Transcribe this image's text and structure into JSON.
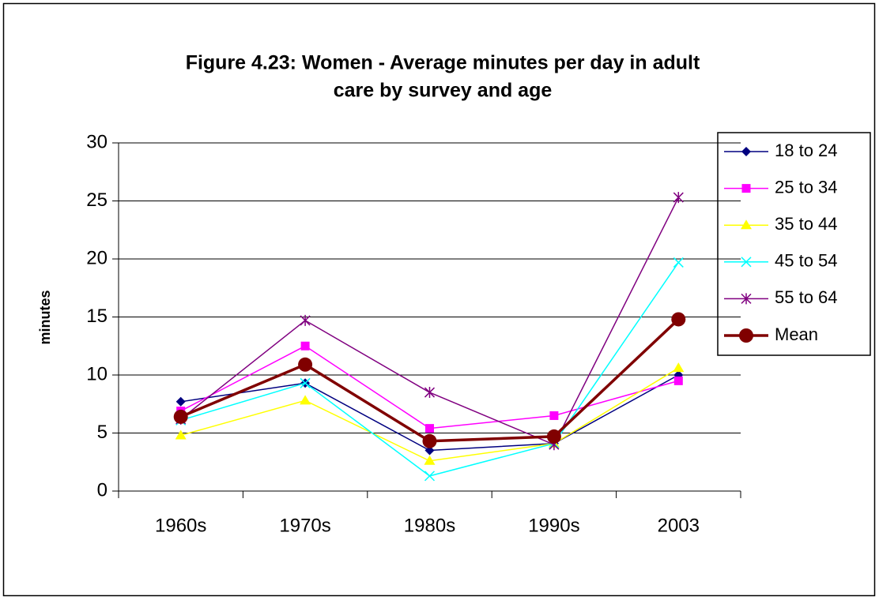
{
  "chart_data": {
    "type": "line",
    "title": [
      "Figure 4.23: Women - Average minutes per day in adult",
      "care  by survey and age"
    ],
    "y_label": "minutes",
    "categories": [
      "1960s",
      "1970s",
      "1980s",
      "1990s",
      "2003"
    ],
    "series": [
      {
        "name": "18 to 24",
        "color": "#000080",
        "marker": "diamond",
        "width": 1.5,
        "values": [
          7.7,
          9.3,
          3.5,
          4.1,
          10.0
        ]
      },
      {
        "name": "25 to 34",
        "color": "#ff00ff",
        "marker": "square",
        "width": 1.5,
        "values": [
          6.9,
          12.5,
          5.4,
          6.5,
          9.5
        ]
      },
      {
        "name": "35 to 44",
        "color": "#ffff00",
        "marker": "triangle",
        "width": 1.5,
        "values": [
          4.8,
          7.8,
          2.6,
          4.1,
          10.6
        ]
      },
      {
        "name": "45 to 54",
        "color": "#00ffff",
        "marker": "x",
        "width": 1.5,
        "values": [
          6.1,
          9.3,
          1.3,
          4.1,
          19.7
        ]
      },
      {
        "name": "55 to 64",
        "color": "#800080",
        "marker": "star",
        "width": 1.5,
        "values": [
          6.2,
          14.7,
          8.5,
          4.0,
          25.3
        ]
      },
      {
        "name": "Mean",
        "color": "#800000",
        "marker": "circle",
        "width": 3.5,
        "values": [
          6.4,
          10.9,
          4.3,
          4.7,
          14.8
        ]
      }
    ],
    "ylim": [
      0,
      30
    ],
    "yticks": [
      0,
      5,
      10,
      15,
      20,
      25,
      30
    ],
    "grid": true,
    "legend": "right"
  }
}
